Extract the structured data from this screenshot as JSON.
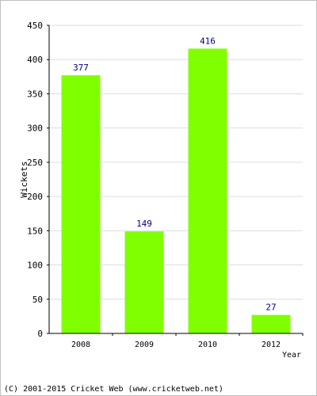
{
  "chart_data": {
    "type": "bar",
    "categories": [
      "2008",
      "2009",
      "2010",
      "2012"
    ],
    "values": [
      377,
      149,
      416,
      27
    ],
    "data_labels": [
      "377",
      "149",
      "416",
      "27"
    ],
    "xlabel": "Year",
    "ylabel": "Wickets",
    "ylim": [
      0,
      450
    ],
    "yticks": [
      "0",
      "50",
      "100",
      "150",
      "200",
      "250",
      "300",
      "350",
      "400",
      "450"
    ],
    "grid": true,
    "bar_color": "#80ff00",
    "label_color": "#000080"
  },
  "footer": {
    "copyright": "(C) 2001-2015 Cricket Web (www.cricketweb.net)"
  }
}
